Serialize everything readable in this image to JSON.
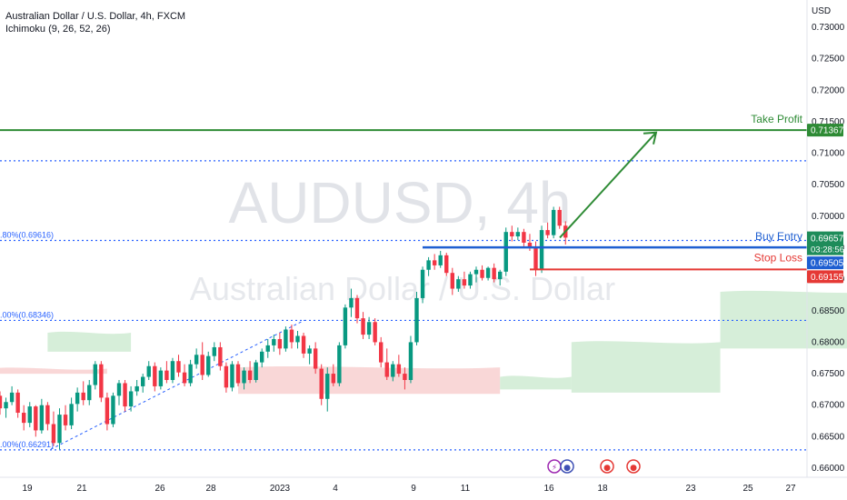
{
  "header": {
    "symbol_title": "Australian Dollar / U.S. Dollar, 4h, FXCM",
    "indicator": "Ichimoku (9, 26, 52, 26)"
  },
  "axis": {
    "currency": "USD"
  },
  "watermark": {
    "symbol": "AUDUSD, 4h",
    "name": "Australian Dollar / U.S. Dollar"
  },
  "chart_data": {
    "type": "candlestick",
    "ylim": [
      0.66,
      0.73
    ],
    "y_ticks": [
      0.66,
      0.665,
      0.67,
      0.675,
      0.68,
      0.685,
      0.69,
      0.695,
      0.7,
      0.705,
      0.71,
      0.715,
      0.72,
      0.725,
      0.73
    ],
    "y_tick_labels": [
      "0.66000",
      "0.66500",
      "0.67000",
      "0.67500",
      "0.68000",
      "0.68500",
      "0.69000",
      "0.69500",
      "0.70000",
      "0.70500",
      "0.71000",
      "0.71500",
      "0.72000",
      "0.72500",
      "0.73000"
    ],
    "x_tick_labels": [
      "19",
      "21",
      "26",
      "28",
      "2023",
      "4",
      "9",
      "11",
      "16",
      "18",
      "23",
      "25",
      "27"
    ],
    "levels": [
      {
        "name": "Take Profit",
        "value": 0.71367,
        "label": "0.71367",
        "color": "#2e8b35"
      },
      {
        "name": "Buy Entry",
        "value": 0.69505,
        "label": "0.69505",
        "color": "#1f5fd1"
      },
      {
        "name": "Stop Loss",
        "value": 0.69155,
        "label": "0.69155",
        "color": "#e53935"
      }
    ],
    "price_label": {
      "value": 0.69657,
      "label": "0.69657",
      "countdown": "03:28:56",
      "color": "#1e8c5a"
    },
    "fib_levels": [
      {
        "text": ".80%(0.69616)",
        "value": 0.69616
      },
      {
        "text": ".00%(0.68346)",
        "value": 0.68346
      },
      {
        "text": ".00%(0.66291)",
        "value": 0.66291
      }
    ],
    "resistance_dotted": 0.7088,
    "candles": [
      [
        0.6715,
        0.6722,
        0.6685,
        0.6695
      ],
      [
        0.6695,
        0.6712,
        0.668,
        0.6705
      ],
      [
        0.6705,
        0.673,
        0.67,
        0.672
      ],
      [
        0.672,
        0.6725,
        0.668,
        0.6688
      ],
      [
        0.6688,
        0.67,
        0.666,
        0.6672
      ],
      [
        0.6672,
        0.6705,
        0.6665,
        0.6698
      ],
      [
        0.6698,
        0.67,
        0.665,
        0.666
      ],
      [
        0.666,
        0.671,
        0.6655,
        0.67
      ],
      [
        0.67,
        0.6705,
        0.666,
        0.667
      ],
      [
        0.667,
        0.669,
        0.6635,
        0.664
      ],
      [
        0.664,
        0.6695,
        0.663,
        0.6685
      ],
      [
        0.6685,
        0.67,
        0.666,
        0.6668
      ],
      [
        0.6668,
        0.6712,
        0.6662,
        0.6702
      ],
      [
        0.6702,
        0.6728,
        0.669,
        0.672
      ],
      [
        0.672,
        0.6738,
        0.67,
        0.6708
      ],
      [
        0.6708,
        0.674,
        0.67,
        0.6732
      ],
      [
        0.6732,
        0.677,
        0.6725,
        0.6765
      ],
      [
        0.6765,
        0.677,
        0.6705,
        0.6712
      ],
      [
        0.6712,
        0.672,
        0.666,
        0.667
      ],
      [
        0.667,
        0.672,
        0.6665,
        0.6715
      ],
      [
        0.6715,
        0.674,
        0.67,
        0.6735
      ],
      [
        0.6735,
        0.674,
        0.669,
        0.6698
      ],
      [
        0.6698,
        0.673,
        0.669,
        0.6722
      ],
      [
        0.6722,
        0.674,
        0.6715,
        0.673
      ],
      [
        0.673,
        0.675,
        0.672,
        0.6745
      ],
      [
        0.6745,
        0.677,
        0.674,
        0.6762
      ],
      [
        0.6762,
        0.6768,
        0.6722,
        0.673
      ],
      [
        0.673,
        0.676,
        0.6725,
        0.6755
      ],
      [
        0.6755,
        0.677,
        0.6735,
        0.674
      ],
      [
        0.674,
        0.6775,
        0.6735,
        0.677
      ],
      [
        0.677,
        0.678,
        0.6745,
        0.6752
      ],
      [
        0.6752,
        0.6765,
        0.673,
        0.6735
      ],
      [
        0.6735,
        0.6772,
        0.673,
        0.6765
      ],
      [
        0.6765,
        0.679,
        0.6758,
        0.678
      ],
      [
        0.678,
        0.68,
        0.674,
        0.6748
      ],
      [
        0.6748,
        0.6785,
        0.6745,
        0.6778
      ],
      [
        0.6778,
        0.68,
        0.677,
        0.6792
      ],
      [
        0.6792,
        0.68,
        0.6755,
        0.6762
      ],
      [
        0.6762,
        0.6768,
        0.672,
        0.6728
      ],
      [
        0.6728,
        0.677,
        0.6722,
        0.6765
      ],
      [
        0.6765,
        0.677,
        0.673,
        0.6735
      ],
      [
        0.6735,
        0.676,
        0.6725,
        0.6755
      ],
      [
        0.6755,
        0.677,
        0.6735,
        0.674
      ],
      [
        0.674,
        0.6772,
        0.6736,
        0.6768
      ],
      [
        0.6768,
        0.679,
        0.676,
        0.6785
      ],
      [
        0.6785,
        0.6805,
        0.6775,
        0.6795
      ],
      [
        0.6795,
        0.6812,
        0.6785,
        0.6805
      ],
      [
        0.6805,
        0.6815,
        0.678,
        0.679
      ],
      [
        0.679,
        0.6825,
        0.6785,
        0.682
      ],
      [
        0.682,
        0.6828,
        0.679,
        0.68
      ],
      [
        0.68,
        0.6818,
        0.679,
        0.681
      ],
      [
        0.681,
        0.6815,
        0.6775,
        0.6782
      ],
      [
        0.6782,
        0.6795,
        0.6765,
        0.679
      ],
      [
        0.679,
        0.68,
        0.675,
        0.6758
      ],
      [
        0.6758,
        0.6765,
        0.67,
        0.671
      ],
      [
        0.671,
        0.676,
        0.669,
        0.675
      ],
      [
        0.675,
        0.6765,
        0.673,
        0.6735
      ],
      [
        0.6735,
        0.68,
        0.673,
        0.6795
      ],
      [
        0.6795,
        0.686,
        0.679,
        0.6855
      ],
      [
        0.6855,
        0.6885,
        0.684,
        0.687
      ],
      [
        0.687,
        0.6875,
        0.683,
        0.6838
      ],
      [
        0.6838,
        0.6848,
        0.6805,
        0.6812
      ],
      [
        0.6812,
        0.684,
        0.6805,
        0.6832
      ],
      [
        0.6832,
        0.6838,
        0.6795,
        0.68
      ],
      [
        0.68,
        0.6808,
        0.676,
        0.6768
      ],
      [
        0.6768,
        0.679,
        0.674,
        0.6745
      ],
      [
        0.6745,
        0.677,
        0.6738,
        0.6765
      ],
      [
        0.6765,
        0.678,
        0.6745,
        0.675
      ],
      [
        0.675,
        0.676,
        0.6725,
        0.674
      ],
      [
        0.674,
        0.681,
        0.6735,
        0.68
      ],
      [
        0.68,
        0.688,
        0.6795,
        0.687
      ],
      [
        0.687,
        0.692,
        0.6862,
        0.6915
      ],
      [
        0.6915,
        0.6935,
        0.6905,
        0.693
      ],
      [
        0.693,
        0.694,
        0.6915,
        0.6922
      ],
      [
        0.6922,
        0.6945,
        0.6918,
        0.6938
      ],
      [
        0.6938,
        0.6942,
        0.6905,
        0.691
      ],
      [
        0.691,
        0.6918,
        0.6875,
        0.6885
      ],
      [
        0.6885,
        0.6905,
        0.688,
        0.69
      ],
      [
        0.69,
        0.6912,
        0.6885,
        0.689
      ],
      [
        0.689,
        0.6912,
        0.6885,
        0.6908
      ],
      [
        0.6908,
        0.692,
        0.6895,
        0.6915
      ],
      [
        0.6915,
        0.6922,
        0.6898,
        0.6902
      ],
      [
        0.6902,
        0.692,
        0.6898,
        0.6918
      ],
      [
        0.6918,
        0.6925,
        0.6895,
        0.69
      ],
      [
        0.69,
        0.6915,
        0.689,
        0.6912
      ],
      [
        0.6912,
        0.6982,
        0.6905,
        0.6975
      ],
      [
        0.6975,
        0.6985,
        0.696,
        0.6968
      ],
      [
        0.6968,
        0.6982,
        0.6962,
        0.6975
      ],
      [
        0.6975,
        0.698,
        0.6952,
        0.6958
      ],
      [
        0.6958,
        0.6972,
        0.6945,
        0.695
      ],
      [
        0.695,
        0.696,
        0.6905,
        0.6915
      ],
      [
        0.6915,
        0.6985,
        0.691,
        0.6978
      ],
      [
        0.6978,
        0.699,
        0.6965,
        0.697
      ],
      [
        0.697,
        0.7015,
        0.6965,
        0.701
      ],
      [
        0.701,
        0.7015,
        0.698,
        0.6985
      ],
      [
        0.6985,
        0.6992,
        0.6955,
        0.6966
      ]
    ],
    "ichimoku_cloud": [
      {
        "from": -2,
        "to": 18,
        "top": 0.6758,
        "bottom": 0.675,
        "color": "red"
      },
      {
        "from": 8,
        "to": 22,
        "top": 0.6815,
        "bottom": 0.6785,
        "color": "green"
      },
      {
        "from": 40,
        "to": 84,
        "top": 0.676,
        "bottom": 0.6718,
        "color": "red"
      },
      {
        "from": 84,
        "to": 96,
        "top": 0.6745,
        "bottom": 0.6725,
        "color": "green"
      },
      {
        "from": 96,
        "to": 121,
        "top": 0.68,
        "bottom": 0.672,
        "color": "green"
      },
      {
        "from": 121,
        "to": 148,
        "top": 0.688,
        "bottom": 0.679,
        "color": "green"
      },
      {
        "from": 148,
        "to": 182,
        "top": 0.695,
        "bottom": 0.686,
        "color": "green"
      }
    ],
    "arrow": {
      "from": [
        616,
        0.6966
      ],
      "to": [
        722,
        0.7133
      ]
    }
  }
}
